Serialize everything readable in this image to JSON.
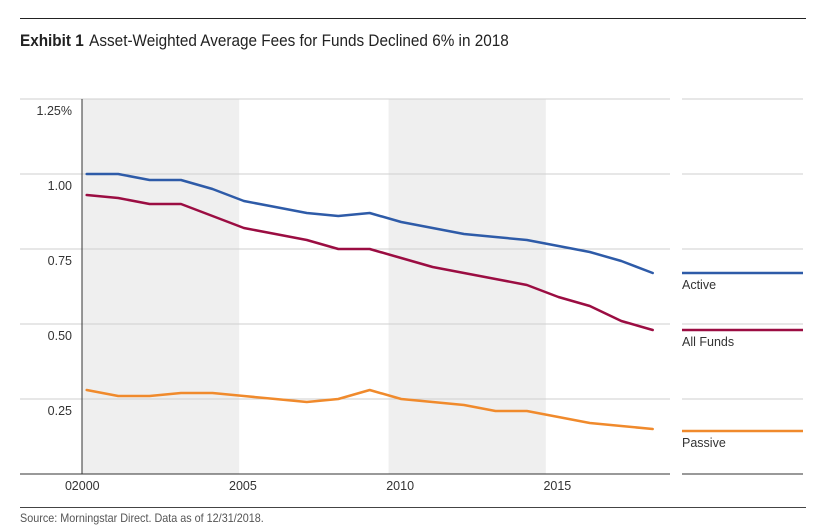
{
  "title": {
    "exhibit": "Exhibit 1",
    "text": "Asset-Weighted Average Fees for Funds Declined 6% in 2018"
  },
  "source": "Source: Morningstar Direct. Data as of 12/31/2018.",
  "chart_data": {
    "type": "line",
    "title": "Asset-Weighted Average Fees for Funds Declined 6% in 2018",
    "xlabel": "",
    "ylabel": "",
    "xlim": [
      1999.85,
      2018.55
    ],
    "ylim": [
      0,
      1.25
    ],
    "x_ticks": [
      2000,
      2005,
      2010,
      2015
    ],
    "x_tick_labels": [
      "2000",
      "2005",
      "2010",
      "2015"
    ],
    "y_ticks": [
      0,
      0.25,
      0.5,
      0.75,
      1.0,
      1.25
    ],
    "y_tick_labels": [
      "0",
      "0.25",
      "0.50",
      "0.75",
      "1.00",
      "1.25%"
    ],
    "shaded_bands": [
      [
        1999.85,
        2004.85
      ],
      [
        2009.6,
        2014.6
      ]
    ],
    "grid": true,
    "legend_position": "right",
    "x": [
      2000,
      2001,
      2002,
      2003,
      2004,
      2005,
      2006,
      2007,
      2008,
      2009,
      2010,
      2011,
      2012,
      2013,
      2014,
      2015,
      2016,
      2017,
      2018
    ],
    "series": [
      {
        "name": "Active",
        "color": "#2e5ba8",
        "values": [
          1.0,
          1.0,
          0.98,
          0.98,
          0.95,
          0.91,
          0.89,
          0.87,
          0.86,
          0.87,
          0.84,
          0.82,
          0.8,
          0.79,
          0.78,
          0.76,
          0.74,
          0.71,
          0.67
        ]
      },
      {
        "name": "All Funds",
        "color": "#9b0d42",
        "values": [
          0.93,
          0.92,
          0.9,
          0.9,
          0.86,
          0.82,
          0.8,
          0.78,
          0.75,
          0.75,
          0.72,
          0.69,
          0.67,
          0.65,
          0.63,
          0.59,
          0.56,
          0.51,
          0.48
        ]
      },
      {
        "name": "Passive",
        "color": "#f08a2c",
        "values": [
          0.28,
          0.26,
          0.26,
          0.27,
          0.27,
          0.26,
          0.25,
          0.24,
          0.25,
          0.28,
          0.25,
          0.24,
          0.23,
          0.21,
          0.21,
          0.19,
          0.17,
          0.16,
          0.15
        ]
      }
    ]
  }
}
